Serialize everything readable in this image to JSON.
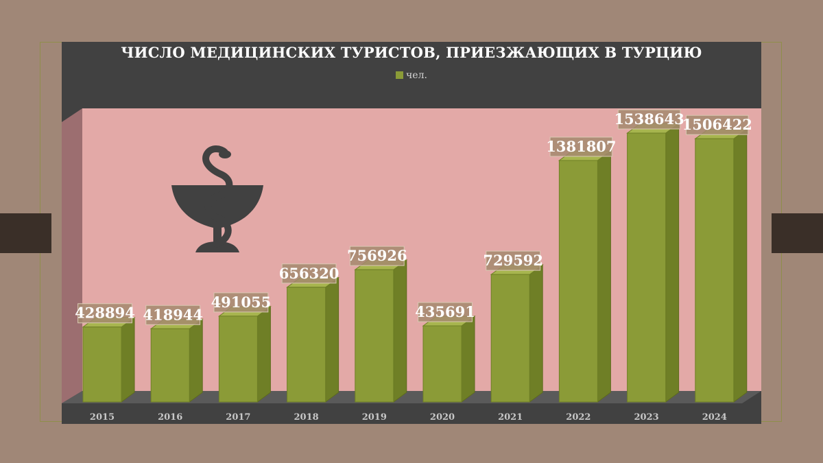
{
  "chart_data": {
    "type": "bar",
    "title": "ЧИСЛО МЕДИЦИНСКИХ ТУРИСТОВ, ПРИЕЗЖАЮЩИХ В ТУРЦИЮ",
    "categories": [
      "2015",
      "2016",
      "2017",
      "2018",
      "2019",
      "2020",
      "2021",
      "2022",
      "2023",
      "2024"
    ],
    "series": [
      {
        "name": "чел.",
        "values": [
          428894,
          418944,
          491055,
          656320,
          756926,
          435691,
          729592,
          1381807,
          1538643,
          1506422
        ]
      }
    ],
    "data_labels": [
      "428894",
      "418944",
      "491055",
      "656320",
      "756926",
      "435691",
      "729592",
      "1381807",
      "1538643",
      "1506422"
    ],
    "legend_position": "top",
    "grid": false,
    "ylim": [
      0,
      1600000
    ],
    "colors": {
      "bar": "#8b9b37",
      "plot_background": "#e3a9a7",
      "panel": "#414141",
      "page": "#a08777"
    },
    "decoration_icon": "bowl-of-hygieia-icon"
  }
}
